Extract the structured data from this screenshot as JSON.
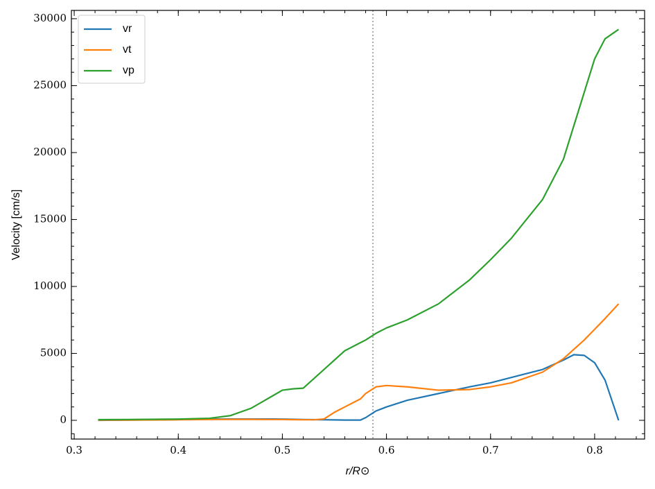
{
  "chart_data": {
    "type": "line",
    "xlabel": "r/R⊙",
    "ylabel": "Velocity [cm/s]",
    "x": [
      0.323,
      0.35,
      0.4,
      0.43,
      0.45,
      0.47,
      0.49,
      0.5,
      0.51,
      0.52,
      0.53,
      0.54,
      0.55,
      0.56,
      0.575,
      0.58,
      0.59,
      0.6,
      0.62,
      0.65,
      0.68,
      0.7,
      0.72,
      0.75,
      0.77,
      0.78,
      0.79,
      0.8,
      0.81,
      0.823
    ],
    "series": [
      {
        "name": "vr",
        "color": "#1f77b4",
        "values": [
          0,
          20,
          60,
          90,
          100,
          100,
          95,
          90,
          80,
          60,
          50,
          40,
          30,
          20,
          20,
          200,
          700,
          1000,
          1500,
          2000,
          2500,
          2800,
          3200,
          3800,
          4500,
          4900,
          4850,
          4300,
          3000,
          0
        ]
      },
      {
        "name": "vt",
        "color": "#ff7f0e",
        "values": [
          20,
          20,
          40,
          60,
          70,
          70,
          60,
          60,
          50,
          40,
          40,
          100,
          600,
          1000,
          1600,
          2000,
          2500,
          2600,
          2500,
          2250,
          2300,
          2500,
          2800,
          3600,
          4600,
          5300,
          6000,
          6800,
          7600,
          8700
        ]
      },
      {
        "name": "vp",
        "color": "#2ca02c",
        "values": [
          50,
          60,
          90,
          150,
          350,
          900,
          1800,
          2250,
          2350,
          2400,
          3100,
          3800,
          4500,
          5200,
          5800,
          6000,
          6500,
          6900,
          7500,
          8700,
          10500,
          12000,
          13600,
          16500,
          19500,
          22000,
          24500,
          27000,
          28500,
          29200
        ]
      }
    ],
    "vline": 0.587,
    "vline_color": "#aaaaaa",
    "xlim": [
      0.2973,
      0.848
    ],
    "xticks": [
      0.3,
      0.4,
      0.5,
      0.6,
      0.7,
      0.8
    ],
    "ylim": [
      -1400,
      30620
    ],
    "yticks": [
      0,
      5000,
      10000,
      15000,
      20000,
      25000,
      30000
    ],
    "legend": "upper left"
  }
}
